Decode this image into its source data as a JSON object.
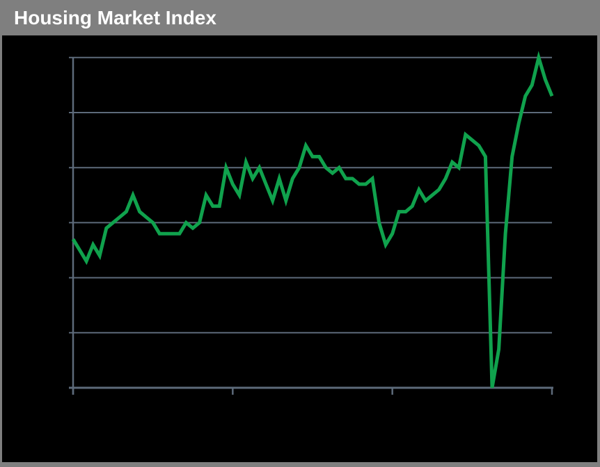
{
  "header": {
    "title": "Housing Market Index"
  },
  "colors": {
    "frame_gray": "#7f7f7f",
    "panel_background": "#000000",
    "title_text": "#ffffff",
    "grid_line": "#5d6a7a",
    "series_green": "#10a24d"
  },
  "chart_data": {
    "type": "line",
    "title": "Housing Market Index",
    "x_note": "monthly observations, index 0-72; x tick marks every 24 points; no axis text labels are visible in the image",
    "values": [
      57,
      55,
      53,
      56,
      54,
      59,
      60,
      61,
      62,
      65,
      62,
      61,
      60,
      58,
      58,
      58,
      58,
      60,
      59,
      60,
      65,
      63,
      63,
      70,
      67,
      65,
      71,
      68,
      70,
      67,
      64,
      68,
      64,
      68,
      70,
      74,
      72,
      72,
      70,
      69,
      70,
      68,
      68,
      67,
      67,
      68,
      60,
      56,
      58,
      62,
      62,
      63,
      66,
      64,
      65,
      66,
      68,
      71,
      70,
      76,
      75,
      74,
      72,
      30,
      37,
      58,
      72,
      78,
      83,
      85,
      90,
      86,
      83
    ],
    "ylim": [
      30,
      90
    ],
    "y_gridline_values": [
      90,
      80,
      70,
      60,
      50,
      40,
      30
    ],
    "x_tick_indices": [
      0,
      24,
      48,
      72
    ],
    "grid": "horizontal gridlines only",
    "legend": "none",
    "axis_tick_labels": "none visible"
  }
}
